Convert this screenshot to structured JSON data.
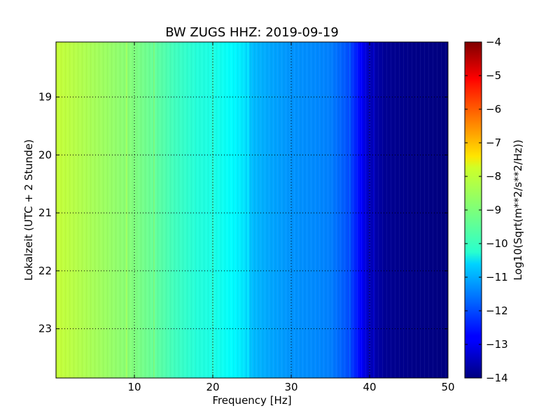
{
  "chart_data": {
    "type": "heatmap",
    "title": "BW ZUGS HHZ: 2019-09-19",
    "xlabel": "Frequency [Hz]",
    "ylabel": "Lokalzeit (UTC + 2 Stunde)",
    "xlim": [
      0,
      50
    ],
    "ylim": [
      18.05,
      23.85
    ],
    "x_ticks": [
      10,
      20,
      30,
      40,
      50
    ],
    "x_tick_labels": [
      "10",
      "20",
      "30",
      "40",
      "50"
    ],
    "y_ticks": [
      19,
      20,
      21,
      22,
      23
    ],
    "y_tick_labels": [
      "19",
      "20",
      "21",
      "22",
      "23"
    ],
    "y_axis_inverted": true,
    "grid": true,
    "colormap": "jet",
    "colorbar": {
      "label": "Log10(Sqrt(m**2/s**2/Hz))",
      "range": [
        -14,
        -4
      ],
      "ticks": [
        -4,
        -5,
        -6,
        -7,
        -8,
        -9,
        -10,
        -11,
        -12,
        -13,
        -14
      ],
      "tick_labels": [
        "−4",
        "−5",
        "−6",
        "−7",
        "−8",
        "−9",
        "−10",
        "−11",
        "−12",
        "−13",
        "−14"
      ]
    },
    "z_profile_by_frequency": {
      "frequency_hz": [
        0,
        3,
        6,
        9,
        12,
        15,
        18,
        20,
        22,
        24,
        25,
        27,
        30,
        33,
        35,
        37,
        38,
        39,
        40,
        42,
        45,
        50
      ],
      "log10_amplitude": [
        -8.3,
        -8.5,
        -8.7,
        -8.9,
        -9.2,
        -9.6,
        -9.9,
        -10.0,
        -10.2,
        -10.5,
        -10.9,
        -11.1,
        -11.3,
        -11.4,
        -11.5,
        -11.9,
        -12.3,
        -12.8,
        -13.4,
        -13.8,
        -13.9,
        -14.0
      ]
    },
    "features": [
      {
        "frequency_hz": 9,
        "description": "vertical line"
      },
      {
        "frequency_hz": 12.5,
        "description": "vertical line"
      },
      {
        "frequency_hz": 20,
        "description": "vertical line"
      },
      {
        "frequency_hz": 24.5,
        "description": "vertical line"
      },
      {
        "frequency_hz": 37.5,
        "description": "vertical line"
      },
      {
        "frequency_hz": 40.5,
        "description": "vertical line"
      }
    ]
  }
}
